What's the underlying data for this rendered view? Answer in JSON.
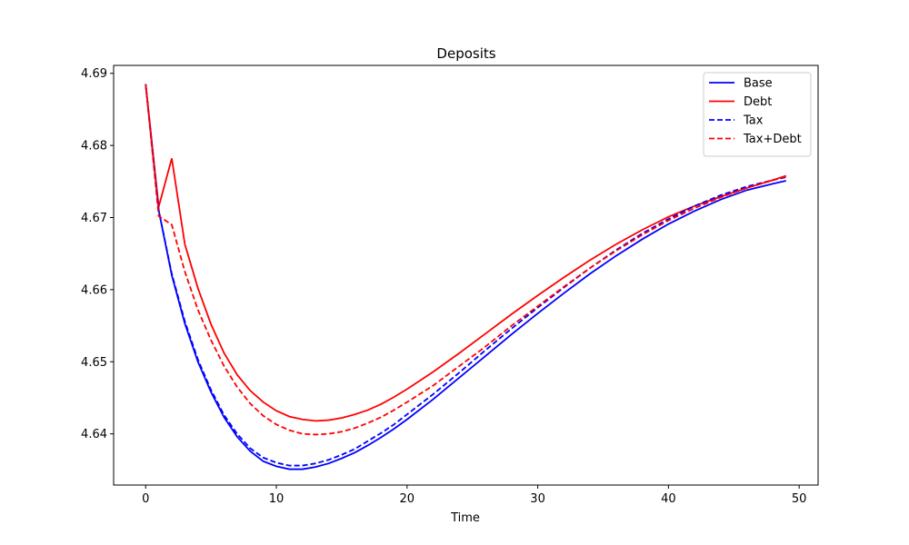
{
  "chart_data": {
    "type": "line",
    "title": "Deposits",
    "xlabel": "Time",
    "ylabel": "",
    "xlim": [
      -2.45,
      51.45
    ],
    "ylim": [
      4.6329,
      4.6911
    ],
    "xticks": [
      0,
      10,
      20,
      30,
      40,
      50
    ],
    "yticks": [
      4.64,
      4.65,
      4.66,
      4.67,
      4.68,
      4.69
    ],
    "legend_position": "top-right",
    "series": [
      {
        "name": "Base",
        "color": "#0000ff",
        "dash": "solid",
        "points": [
          [
            0,
            4.6885
          ],
          [
            1,
            4.671
          ],
          [
            2,
            4.662
          ],
          [
            3,
            4.6553
          ],
          [
            4,
            4.65
          ],
          [
            5,
            4.6458
          ],
          [
            6,
            4.6423
          ],
          [
            7,
            4.6396
          ],
          [
            8,
            4.6376
          ],
          [
            9,
            4.6362
          ],
          [
            10,
            4.6355
          ],
          [
            11,
            4.6351
          ],
          [
            12,
            4.6351
          ],
          [
            13,
            4.6354
          ],
          [
            14,
            4.6359
          ],
          [
            15,
            4.6366
          ],
          [
            16,
            4.6374
          ],
          [
            17,
            4.6384
          ],
          [
            18,
            4.6395
          ],
          [
            19,
            4.6407
          ],
          [
            20,
            4.642
          ],
          [
            22,
            4.6448
          ],
          [
            24,
            4.6478
          ],
          [
            26,
            4.6508
          ],
          [
            28,
            4.6538
          ],
          [
            30,
            4.6567
          ],
          [
            32,
            4.6595
          ],
          [
            34,
            4.6622
          ],
          [
            36,
            4.6647
          ],
          [
            38,
            4.667
          ],
          [
            40,
            4.6691
          ],
          [
            42,
            4.6709
          ],
          [
            44,
            4.6725
          ],
          [
            46,
            4.6738
          ],
          [
            48,
            4.6747
          ],
          [
            49,
            4.6751
          ]
        ]
      },
      {
        "name": "Debt",
        "color": "#ff0000",
        "dash": "solid",
        "points": [
          [
            0,
            4.6885
          ],
          [
            1,
            4.6715
          ],
          [
            2,
            4.6782
          ],
          [
            3,
            4.6663
          ],
          [
            4,
            4.6602
          ],
          [
            5,
            4.6552
          ],
          [
            6,
            4.6512
          ],
          [
            7,
            4.6482
          ],
          [
            8,
            4.646
          ],
          [
            9,
            4.6444
          ],
          [
            10,
            4.6432
          ],
          [
            11,
            4.6424
          ],
          [
            12,
            4.642
          ],
          [
            13,
            4.6418
          ],
          [
            14,
            4.6419
          ],
          [
            15,
            4.6422
          ],
          [
            16,
            4.6427
          ],
          [
            17,
            4.6433
          ],
          [
            18,
            4.6441
          ],
          [
            19,
            4.6451
          ],
          [
            20,
            4.6462
          ],
          [
            22,
            4.6486
          ],
          [
            24,
            4.6512
          ],
          [
            26,
            4.6539
          ],
          [
            28,
            4.6566
          ],
          [
            30,
            4.6592
          ],
          [
            32,
            4.6617
          ],
          [
            34,
            4.6641
          ],
          [
            36,
            4.6663
          ],
          [
            38,
            4.6683
          ],
          [
            40,
            4.6701
          ],
          [
            42,
            4.6716
          ],
          [
            44,
            4.6729
          ],
          [
            46,
            4.6741
          ],
          [
            48,
            4.6752
          ],
          [
            49,
            4.6758
          ]
        ]
      },
      {
        "name": "Tax",
        "color": "#0000ff",
        "dash": "dashed",
        "points": [
          [
            0,
            4.6885
          ],
          [
            1,
            4.671
          ],
          [
            2,
            4.6622
          ],
          [
            3,
            4.6556
          ],
          [
            4,
            4.6503
          ],
          [
            5,
            4.6461
          ],
          [
            6,
            4.6426
          ],
          [
            7,
            4.64
          ],
          [
            8,
            4.638
          ],
          [
            9,
            4.6367
          ],
          [
            10,
            4.636
          ],
          [
            11,
            4.6356
          ],
          [
            12,
            4.6356
          ],
          [
            13,
            4.6359
          ],
          [
            14,
            4.6364
          ],
          [
            15,
            4.6371
          ],
          [
            16,
            4.6379
          ],
          [
            17,
            4.639
          ],
          [
            18,
            4.6401
          ],
          [
            19,
            4.6413
          ],
          [
            20,
            4.6427
          ],
          [
            22,
            4.6455
          ],
          [
            24,
            4.6485
          ],
          [
            26,
            4.6516
          ],
          [
            28,
            4.6546
          ],
          [
            30,
            4.6575
          ],
          [
            32,
            4.6603
          ],
          [
            34,
            4.663
          ],
          [
            36,
            4.6655
          ],
          [
            38,
            4.6678
          ],
          [
            40,
            4.6698
          ],
          [
            42,
            4.6716
          ],
          [
            44,
            4.6731
          ],
          [
            46,
            4.6743
          ],
          [
            48,
            4.6752
          ],
          [
            49,
            4.6756
          ]
        ]
      },
      {
        "name": "Tax+Debt",
        "color": "#ff0000",
        "dash": "dashed",
        "points": [
          [
            0,
            4.6885
          ],
          [
            1,
            4.6702
          ],
          [
            2,
            4.669
          ],
          [
            3,
            4.6625
          ],
          [
            4,
            4.6572
          ],
          [
            5,
            4.653
          ],
          [
            6,
            4.6494
          ],
          [
            7,
            4.6465
          ],
          [
            8,
            4.6442
          ],
          [
            9,
            4.6425
          ],
          [
            10,
            4.6413
          ],
          [
            11,
            4.6405
          ],
          [
            12,
            4.64
          ],
          [
            13,
            4.6399
          ],
          [
            14,
            4.64
          ],
          [
            15,
            4.6403
          ],
          [
            16,
            4.6408
          ],
          [
            17,
            4.6415
          ],
          [
            18,
            4.6423
          ],
          [
            19,
            4.6433
          ],
          [
            20,
            4.6444
          ],
          [
            22,
            4.6467
          ],
          [
            24,
            4.6494
          ],
          [
            26,
            4.6521
          ],
          [
            28,
            4.655
          ],
          [
            30,
            4.6577
          ],
          [
            32,
            4.6604
          ],
          [
            34,
            4.663
          ],
          [
            36,
            4.6654
          ],
          [
            38,
            4.6676
          ],
          [
            40,
            4.6696
          ],
          [
            42,
            4.6713
          ],
          [
            44,
            4.6728
          ],
          [
            46,
            4.6741
          ],
          [
            48,
            4.6752
          ],
          [
            49,
            4.6757
          ]
        ]
      }
    ]
  }
}
